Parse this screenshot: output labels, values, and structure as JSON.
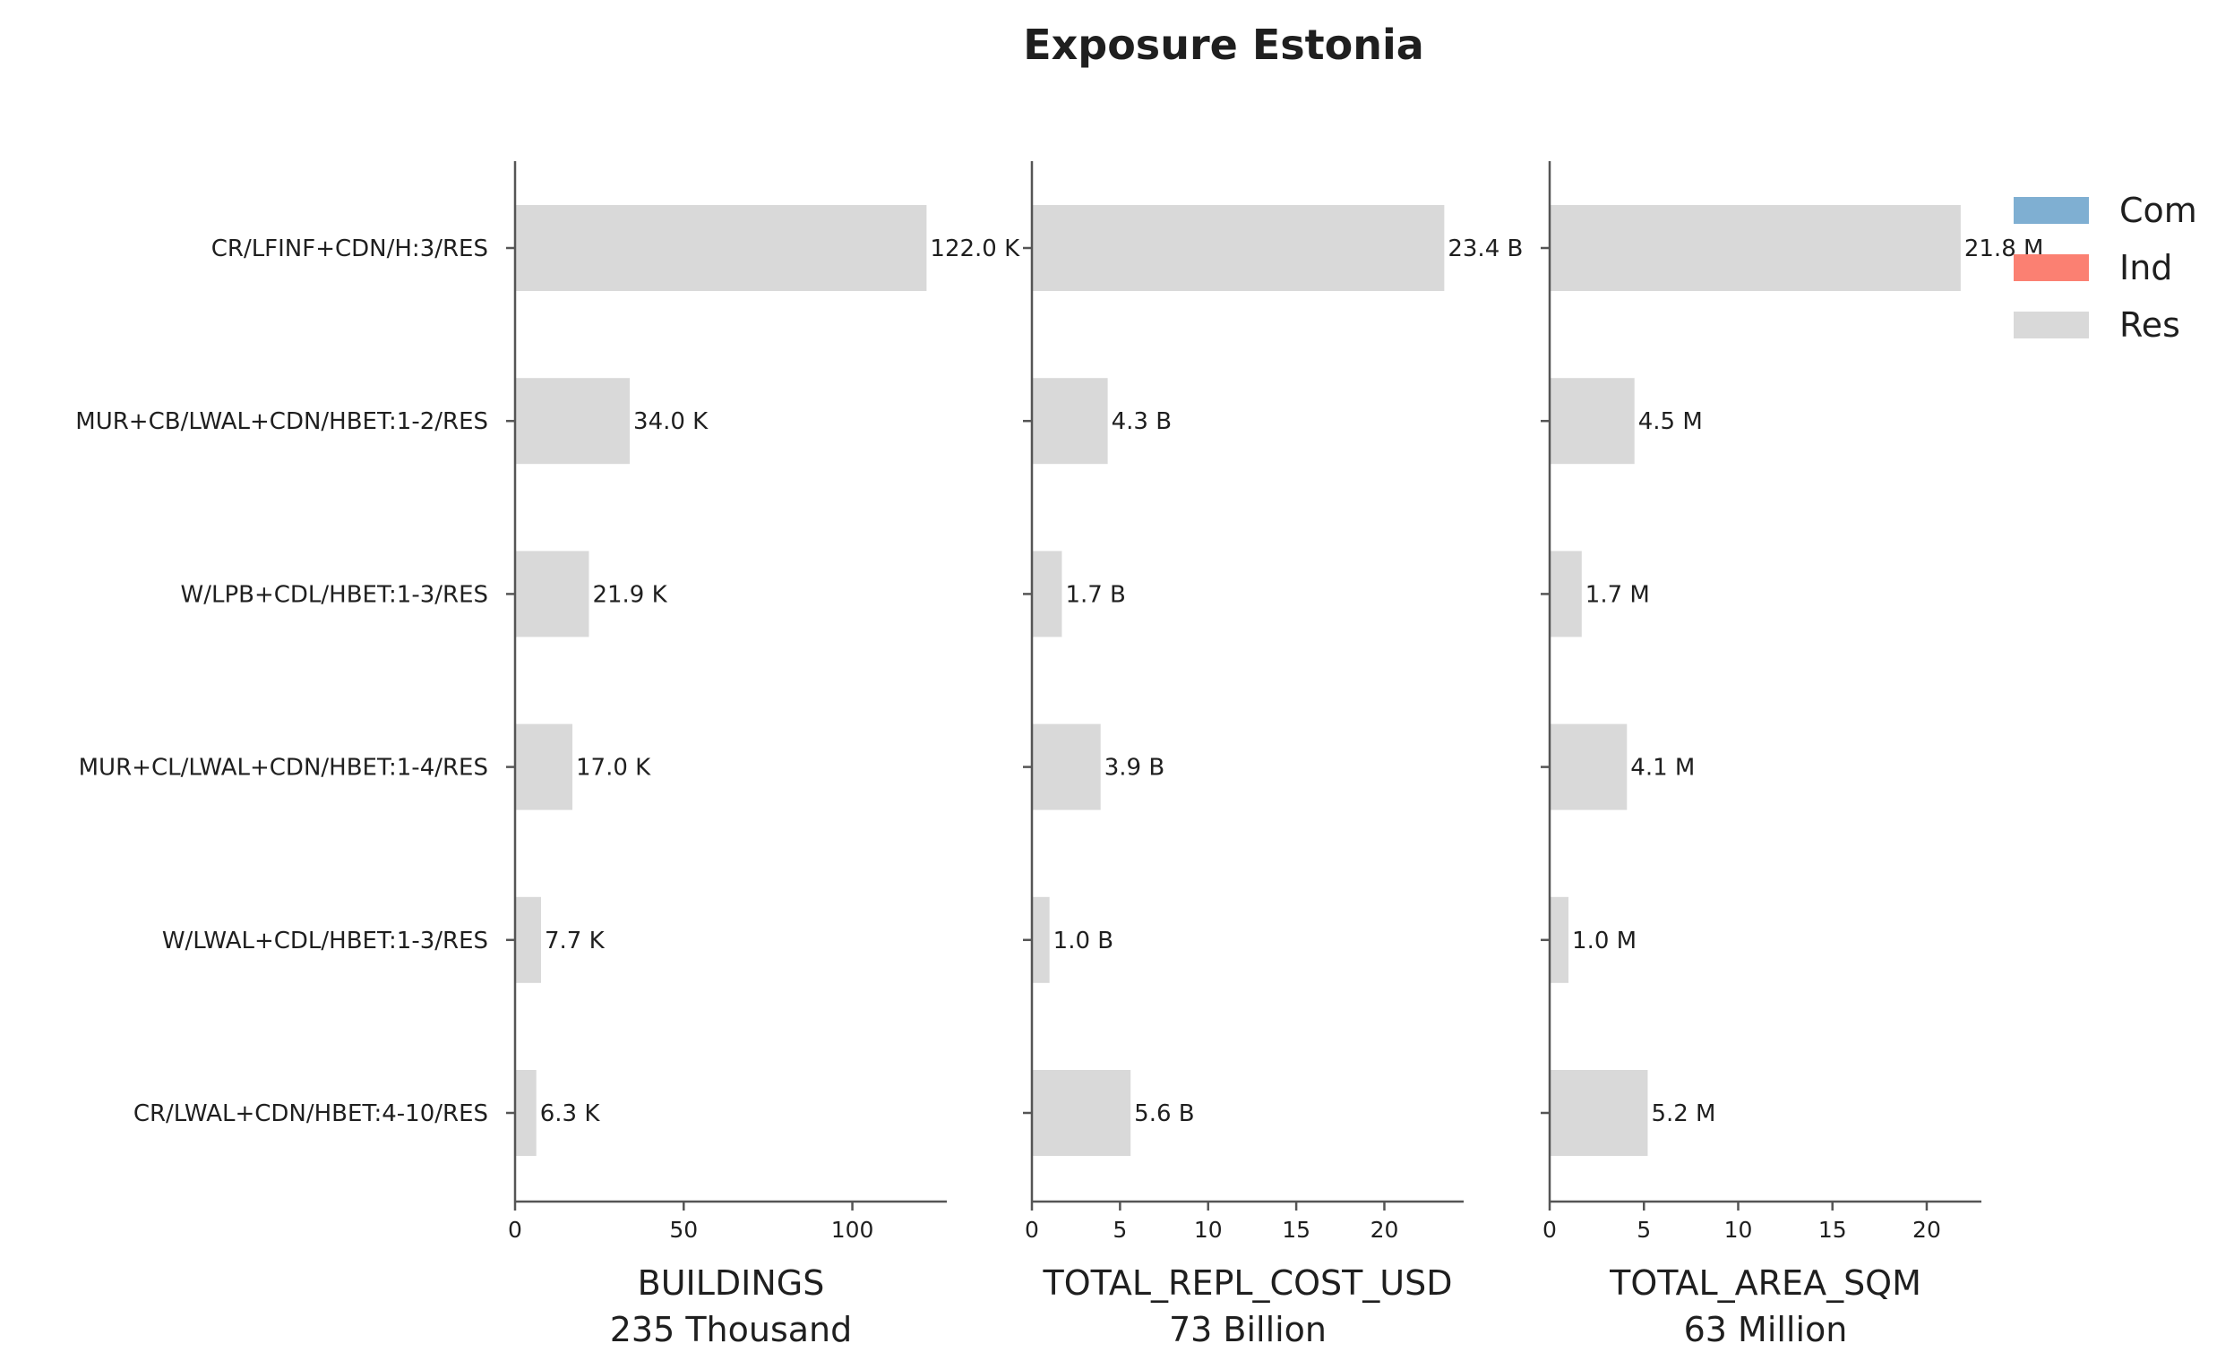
{
  "chart_data": {
    "type": "bar",
    "orientation": "horizontal",
    "stacked": true,
    "title": "Exposure Estonia",
    "categories": [
      "CR/LFINF+CDN/H:3/RES",
      "MUR+CB/LWAL+CDN/HBET:1-2/RES",
      "W/LPB+CDL/HBET:1-3/RES",
      "MUR+CL/LWAL+CDN/HBET:1-4/RES",
      "W/LWAL+CDL/HBET:1-3/RES",
      "CR/LWAL+CDN/HBET:4-10/RES"
    ],
    "legend": {
      "position": "top-right",
      "entries": [
        {
          "name": "Com",
          "color": "#7fafd2"
        },
        {
          "name": "Ind",
          "color": "#fb8072"
        },
        {
          "name": "Res",
          "color": "#d9d9d9"
        }
      ]
    },
    "panels": [
      {
        "id": "buildings",
        "xlabel": "BUILDINGS",
        "xlabel_total": "235 Thousand",
        "xlim": [
          0,
          128
        ],
        "xticks": [
          0,
          50,
          100
        ],
        "series": [
          {
            "name": "Res",
            "values": [
              122.0,
              34.0,
              21.9,
              17.0,
              7.7,
              6.3
            ]
          }
        ],
        "data_labels": [
          "122.0 K",
          "34.0 K",
          "21.9 K",
          "17.0 K",
          "7.7 K",
          "6.3 K"
        ]
      },
      {
        "id": "repl_cost",
        "xlabel": "TOTAL_REPL_COST_USD",
        "xlabel_total": "73 Billion",
        "xlim": [
          0,
          24.5
        ],
        "xticks": [
          0,
          5,
          10,
          15,
          20
        ],
        "series": [
          {
            "name": "Res",
            "values": [
              23.4,
              4.3,
              1.7,
              3.9,
              1.0,
              5.6
            ]
          }
        ],
        "data_labels": [
          "23.4 B",
          "4.3 B",
          "1.7 B",
          "3.9 B",
          "1.0 B",
          "5.6 B"
        ]
      },
      {
        "id": "area",
        "xlabel": "TOTAL_AREA_SQM",
        "xlabel_total": "63 Million",
        "xlim": [
          0,
          22.9
        ],
        "xticks": [
          0,
          5,
          10,
          15,
          20
        ],
        "series": [
          {
            "name": "Res",
            "values": [
              21.8,
              4.5,
              1.7,
              4.1,
              1.0,
              5.2
            ]
          }
        ],
        "data_labels": [
          "21.8 M",
          "4.5 M",
          "1.7 M",
          "4.1 M",
          "1.0 M",
          "5.2 M"
        ]
      }
    ]
  }
}
